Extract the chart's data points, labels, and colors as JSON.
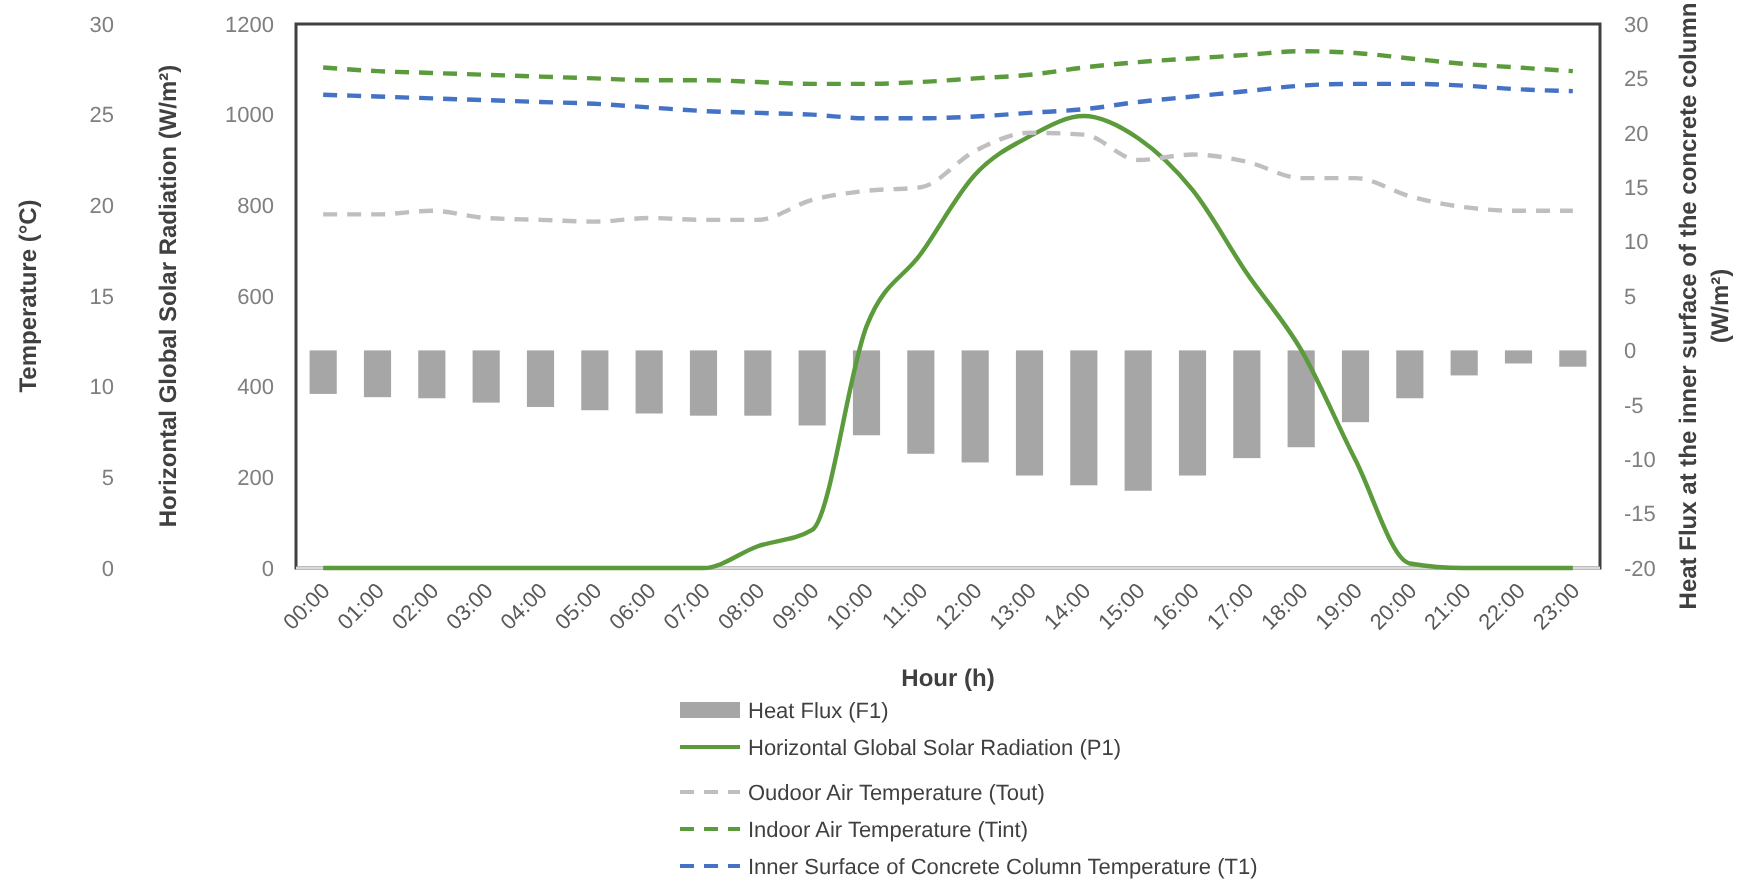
{
  "chart_data": {
    "type": "line",
    "categories": [
      "00:00",
      "01:00",
      "02:00",
      "03:00",
      "04:00",
      "05:00",
      "06:00",
      "07:00",
      "08:00",
      "09:00",
      "10:00",
      "11:00",
      "12:00",
      "13:00",
      "14:00",
      "15:00",
      "16:00",
      "17:00",
      "18:00",
      "19:00",
      "20:00",
      "21:00",
      "22:00",
      "23:00"
    ],
    "xlabel": "Hour (h)",
    "y3label": "Temperature (°C)",
    "ylabel": "Horizontal Global Solar Radiation (W/m²)",
    "y2label": "Heat  Flux at the inner surface of the concrete column (W/m²)",
    "y3lim": [
      0,
      30
    ],
    "y3ticks": [
      0,
      5,
      10,
      15,
      20,
      25,
      30
    ],
    "ylim": [
      0,
      1200
    ],
    "yticks": [
      0,
      200,
      400,
      600,
      800,
      1000,
      1200
    ],
    "y2lim": [
      -20,
      30
    ],
    "y2ticks": [
      -20,
      -15,
      -10,
      -5,
      0,
      5,
      10,
      15,
      20,
      25,
      30
    ],
    "grid": false,
    "legend": "bottom",
    "marker": "none",
    "series": [
      {
        "name": "Heat Flux (F1)",
        "type": "bar",
        "axis": "y2",
        "color": "#a6a6a6",
        "values": [
          -4.0,
          -4.3,
          -4.4,
          -4.8,
          -5.2,
          -5.5,
          -5.8,
          -6.0,
          -6.0,
          -6.9,
          -7.8,
          -9.5,
          -10.3,
          -11.5,
          -12.4,
          -12.9,
          -11.5,
          -9.9,
          -8.9,
          -6.6,
          -4.4,
          -2.3,
          -1.2,
          -1.5
        ]
      },
      {
        "name": "Horizontal Global Solar Radiation (P1)",
        "axis": "y",
        "line_style": "solid",
        "color": "#5b9b3b",
        "values": [
          0,
          0,
          0,
          0,
          0,
          0,
          0,
          0,
          48,
          84,
          533,
          693,
          868,
          952,
          997,
          948,
          834,
          650,
          481,
          238,
          10,
          0,
          0,
          0
        ]
      },
      {
        "name": "Oudoor Air Temperature (Tout)",
        "axis": "y3",
        "line_style": "dashed",
        "color": "#bfbfbf",
        "values": [
          19.5,
          19.5,
          19.7,
          19.3,
          19.2,
          19.1,
          19.3,
          19.2,
          19.2,
          20.3,
          20.8,
          21.0,
          23.0,
          24.0,
          23.9,
          22.5,
          22.8,
          22.4,
          21.5,
          21.5,
          20.5,
          19.9,
          19.7,
          19.7
        ]
      },
      {
        "name": "Indoor Air Temperature (Tint)",
        "axis": "y3",
        "line_style": "dashed",
        "color": "#5b9b3b",
        "values": [
          27.6,
          27.4,
          27.3,
          27.2,
          27.1,
          27.0,
          26.9,
          26.9,
          26.8,
          26.7,
          26.7,
          26.8,
          27.0,
          27.2,
          27.6,
          27.9,
          28.1,
          28.3,
          28.5,
          28.4,
          28.1,
          27.8,
          27.6,
          27.4
        ]
      },
      {
        "name": "Inner Surface of Concrete Column Temperature (T1)",
        "axis": "y3",
        "line_style": "dashed",
        "color": "#4472c4",
        "values": [
          26.1,
          26.0,
          25.9,
          25.8,
          25.7,
          25.6,
          25.4,
          25.2,
          25.1,
          25.0,
          24.8,
          24.8,
          24.9,
          25.1,
          25.3,
          25.7,
          26.0,
          26.3,
          26.6,
          26.7,
          26.7,
          26.6,
          26.4,
          26.3
        ]
      }
    ]
  }
}
